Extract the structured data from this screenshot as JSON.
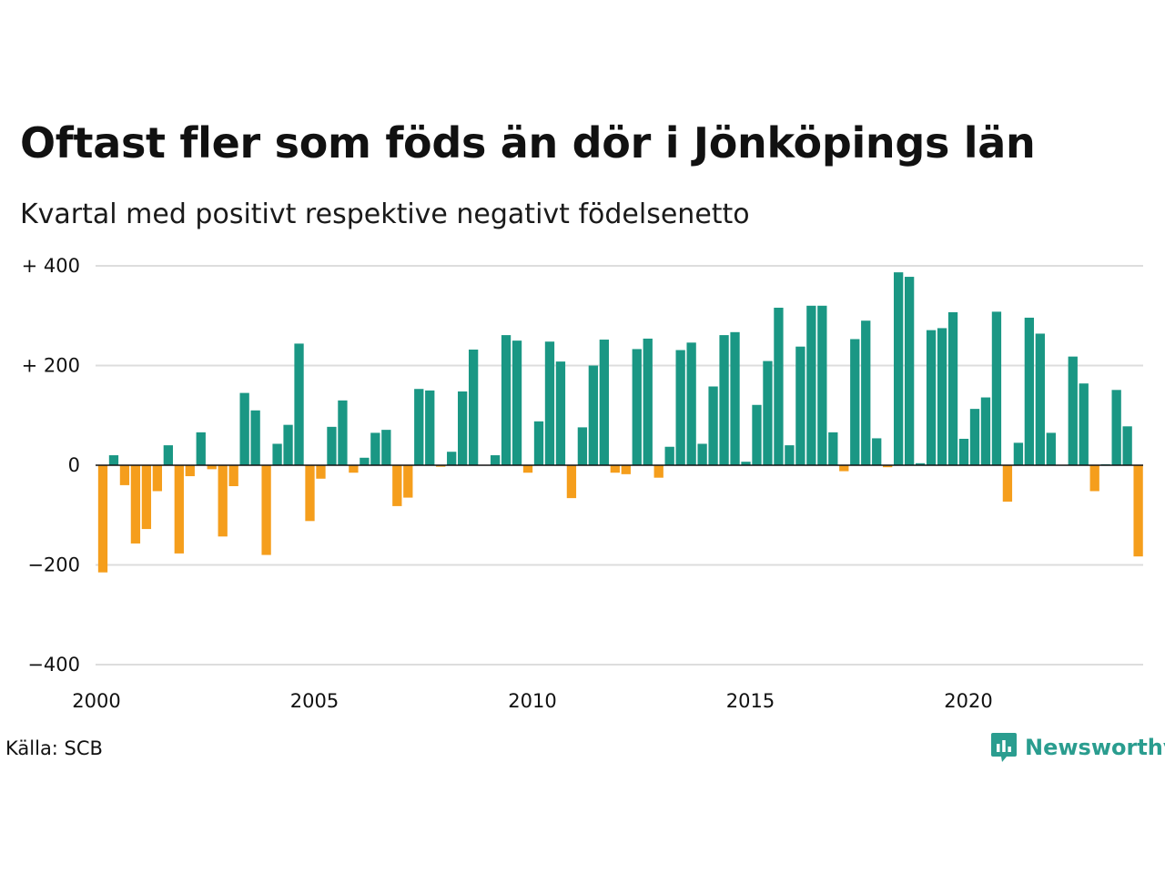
{
  "header": {
    "title": "Oftast fler som föds än dör i Jönköpings län",
    "subtitle": "Kvartal med positivt respektive negativt födelsenetto"
  },
  "footer": {
    "source": "Källa: SCB",
    "brand": "Newsworthy"
  },
  "colors": {
    "positive": "#1a9784",
    "negative": "#f59e1c",
    "grid": "#dddddd",
    "baseline": "#111111",
    "brand": "#2a9d8f"
  },
  "icons": {
    "brand_logo": "bar-chart-speech-bubble-icon"
  },
  "chart_data": {
    "type": "bar",
    "title": "Oftast fler som föds än dör i Jönköpings län",
    "subtitle": "Kvartal med positivt respektive negativt födelsenetto",
    "x_start_year": 2000,
    "x_start_quarter": 1,
    "x_ticks": [
      2000,
      2005,
      2010,
      2015,
      2020
    ],
    "x_tick_labels": [
      "2000",
      "2005",
      "2010",
      "2015",
      "2020"
    ],
    "xlim": [
      2000,
      2024
    ],
    "ylim": [
      -400,
      400
    ],
    "y_ticks": [
      400,
      200,
      0,
      -200,
      -400
    ],
    "y_tick_labels": [
      "+ 400",
      "+ 200",
      "0",
      "−200",
      "−400"
    ],
    "grid": true,
    "legend": "none",
    "values": [
      -215,
      20,
      -40,
      -157,
      -128,
      -52,
      40,
      -177,
      -22,
      66,
      -8,
      -143,
      -42,
      145,
      110,
      -180,
      43,
      81,
      244,
      -112,
      -27,
      77,
      130,
      -15,
      15,
      65,
      71,
      -82,
      -65,
      153,
      150,
      -3,
      27,
      148,
      232,
      0,
      20,
      261,
      250,
      -15,
      88,
      248,
      208,
      -66,
      76,
      200,
      252,
      -15,
      -18,
      233,
      254,
      -25,
      37,
      231,
      246,
      43,
      158,
      261,
      267,
      7,
      121,
      209,
      316,
      40,
      238,
      320,
      320,
      66,
      -12,
      253,
      290,
      54,
      -4,
      387,
      378,
      4,
      271,
      275,
      307,
      53,
      113,
      136,
      308,
      -73,
      45,
      296,
      264,
      65,
      0,
      218,
      164,
      -52,
      2,
      151,
      78,
      -183
    ]
  }
}
